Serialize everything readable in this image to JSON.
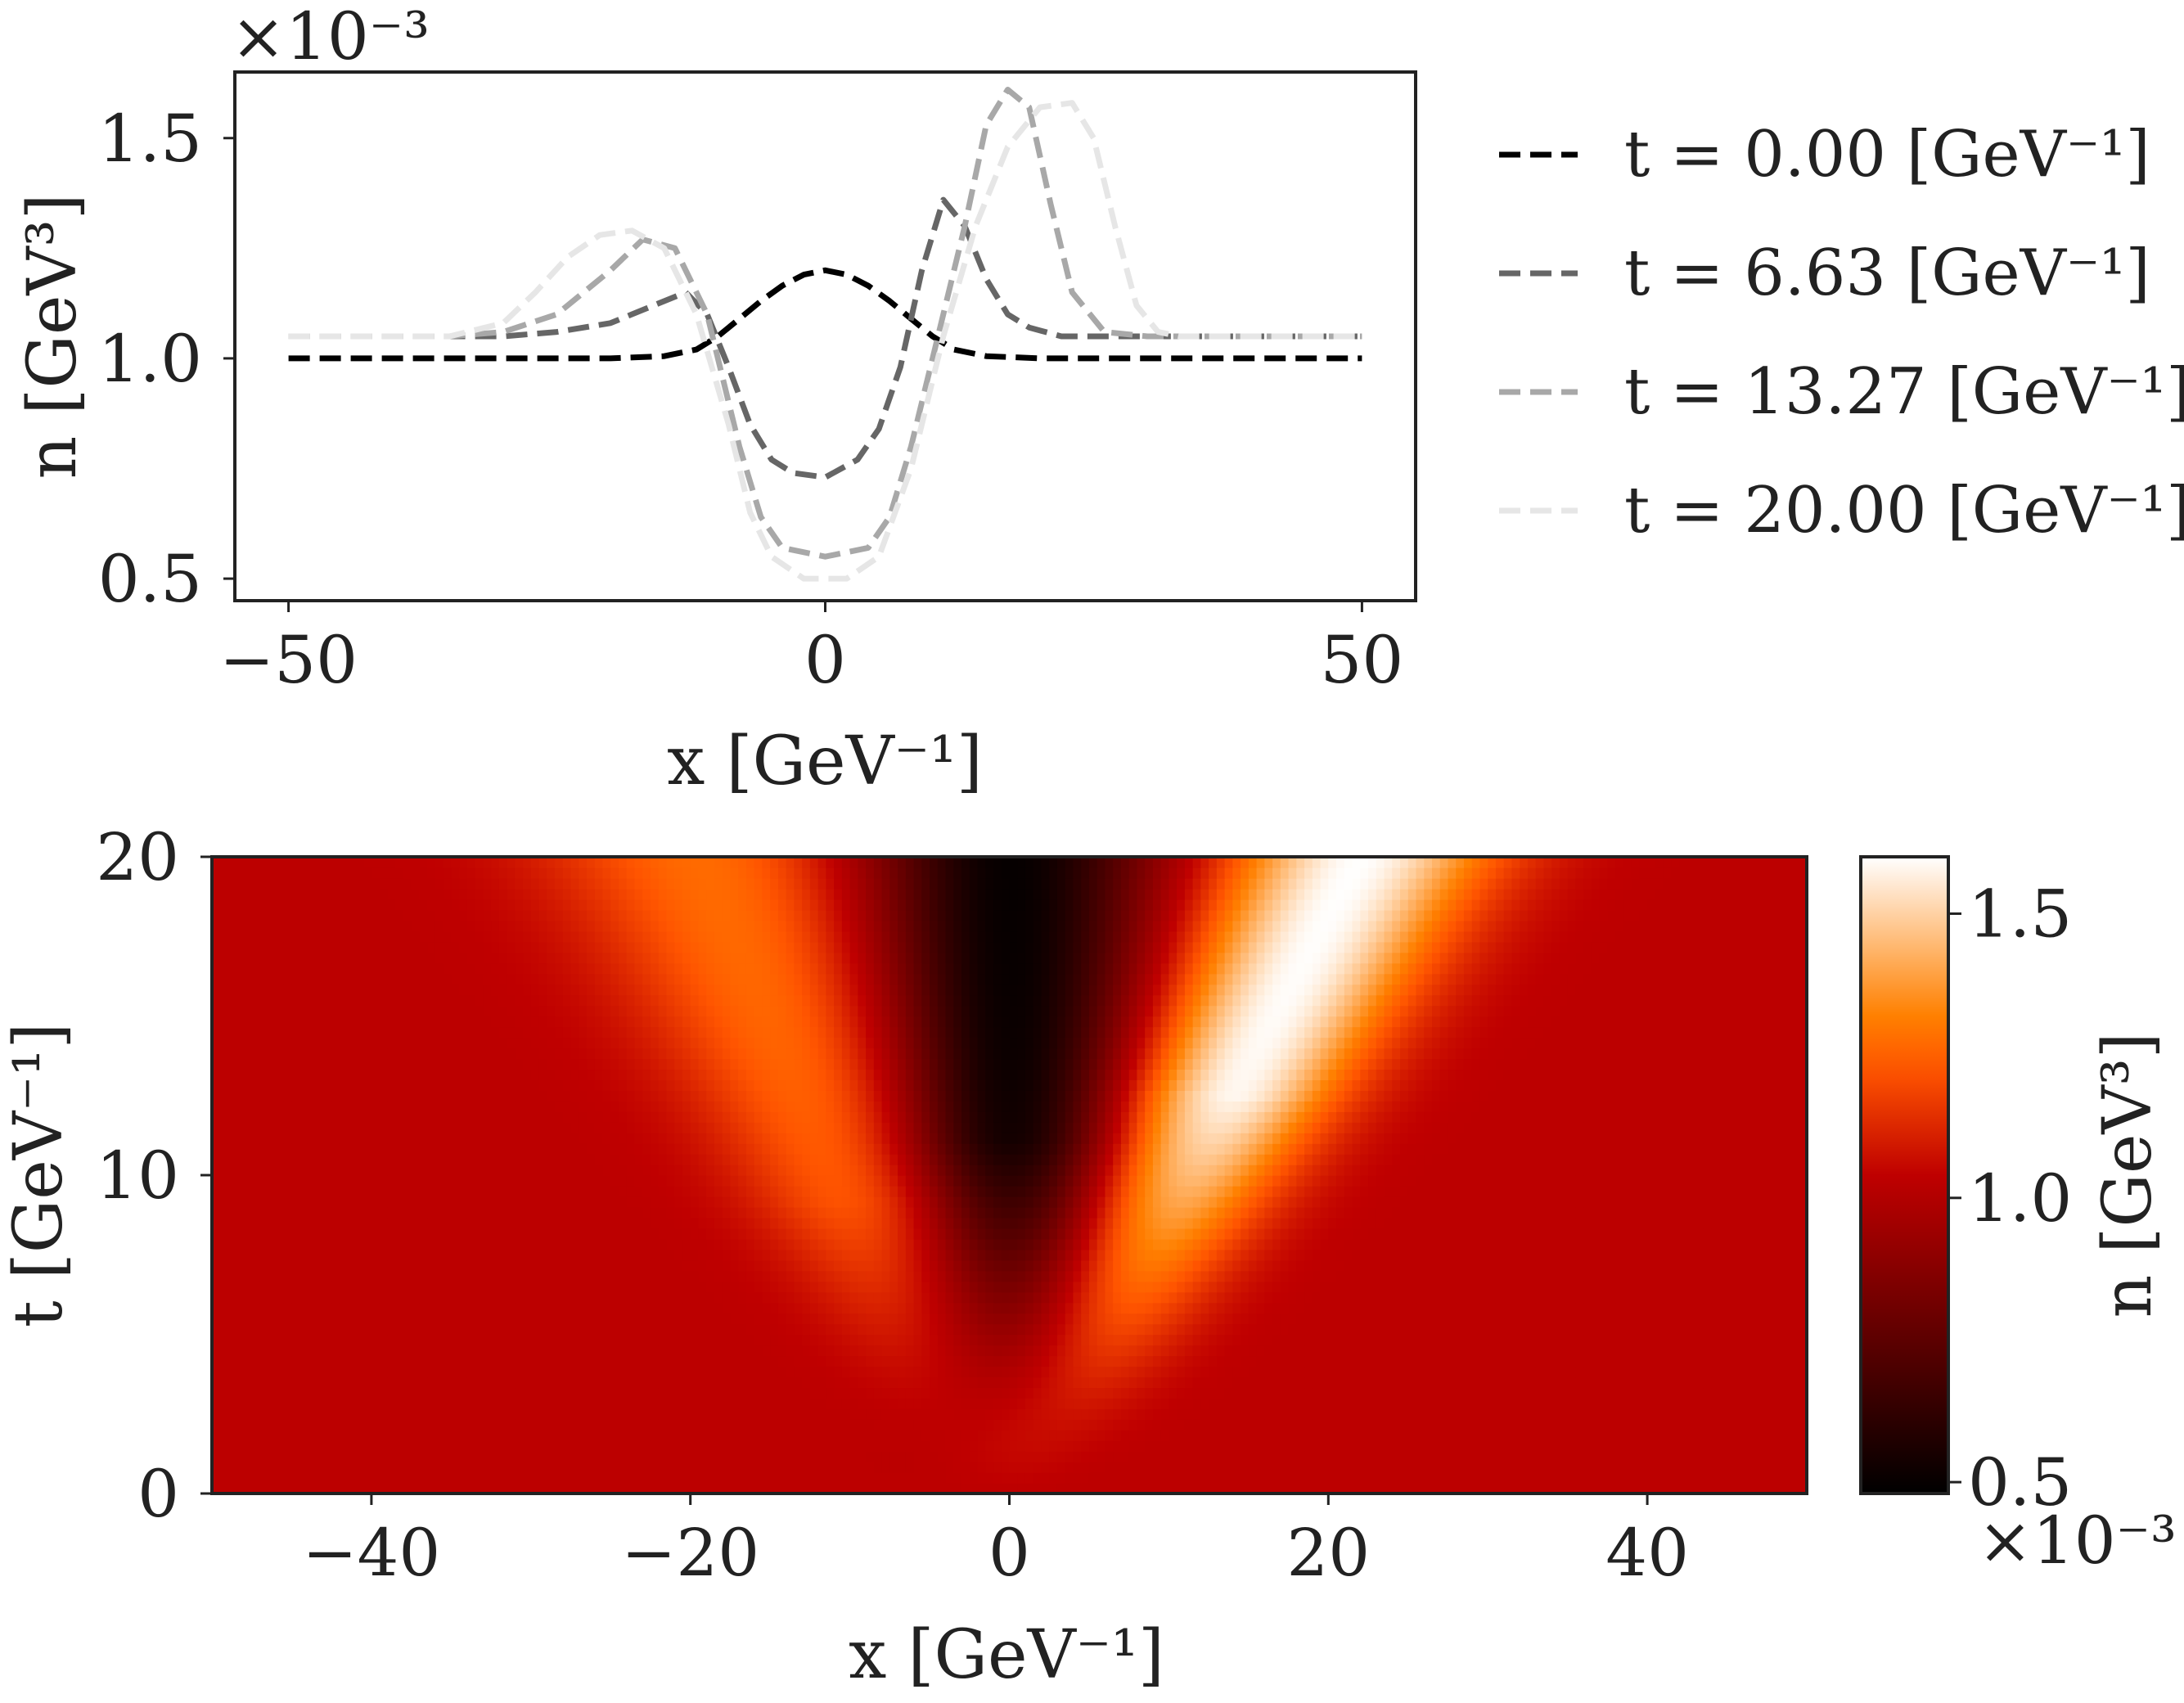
{
  "chart_data": [
    {
      "type": "line",
      "xlabel": "x [GeV⁻¹]",
      "ylabel": "n [GeV³]",
      "yscale_label": "×10⁻³",
      "xlim": [
        -55,
        55
      ],
      "ylim": [
        0.45,
        1.65
      ],
      "xticks": [
        -50,
        0,
        50
      ],
      "xtick_labels": [
        "−50",
        "0",
        "50"
      ],
      "yticks": [
        0.5,
        1.0,
        1.5
      ],
      "ytick_labels": [
        "0.5",
        "1.0",
        "1.5"
      ],
      "grid": false,
      "legend_position": "right",
      "series": [
        {
          "name": "t = 0.00 [GeV⁻¹]",
          "color": "#000000",
          "x": [
            -50,
            -30,
            -20,
            -15,
            -12,
            -10,
            -8,
            -6,
            -4,
            -2,
            0,
            2,
            4,
            6,
            8,
            10,
            12,
            15,
            20,
            30,
            50
          ],
          "y": [
            1.0,
            1.0,
            1.0,
            1.005,
            1.02,
            1.05,
            1.09,
            1.13,
            1.165,
            1.19,
            1.2,
            1.19,
            1.165,
            1.13,
            1.09,
            1.05,
            1.02,
            1.005,
            1.0,
            1.0,
            1.0
          ]
        },
        {
          "name": "t = 6.63 [GeV⁻¹]",
          "color": "#666666",
          "x": [
            -50,
            -30,
            -25,
            -20,
            -16,
            -13,
            -11,
            -9,
            -7,
            -5,
            -3,
            0,
            3,
            5,
            7,
            9,
            11,
            13,
            15,
            17,
            19,
            22,
            25,
            30,
            50
          ],
          "y": [
            1.05,
            1.05,
            1.06,
            1.08,
            1.12,
            1.15,
            1.1,
            0.98,
            0.85,
            0.77,
            0.74,
            0.73,
            0.77,
            0.84,
            0.98,
            1.2,
            1.36,
            1.3,
            1.18,
            1.1,
            1.07,
            1.05,
            1.05,
            1.05,
            1.05
          ]
        },
        {
          "name": "t = 13.27 [GeV⁻¹]",
          "color": "#a8a8a8",
          "x": [
            -50,
            -35,
            -30,
            -25,
            -20,
            -17,
            -14,
            -11,
            -8,
            -6,
            -4,
            0,
            4,
            6,
            8,
            10,
            13,
            15,
            17,
            19,
            21,
            23,
            26,
            30,
            50
          ],
          "y": [
            1.05,
            1.05,
            1.06,
            1.1,
            1.2,
            1.27,
            1.25,
            1.1,
            0.8,
            0.64,
            0.57,
            0.55,
            0.57,
            0.64,
            0.8,
            1.0,
            1.3,
            1.53,
            1.61,
            1.57,
            1.35,
            1.15,
            1.06,
            1.05,
            1.05
          ]
        },
        {
          "name": "t = 20.00 [GeV⁻¹]",
          "color": "#e6e6e6",
          "x": [
            -50,
            -35,
            -30,
            -27,
            -24,
            -21,
            -18,
            -15,
            -12,
            -9,
            -7,
            -5,
            -2,
            2,
            5,
            8,
            11,
            14,
            17,
            20,
            23,
            25,
            27,
            29,
            31,
            33,
            36,
            50
          ],
          "y": [
            1.05,
            1.05,
            1.08,
            1.15,
            1.23,
            1.28,
            1.29,
            1.25,
            1.1,
            0.85,
            0.65,
            0.55,
            0.5,
            0.5,
            0.55,
            0.75,
            1.05,
            1.3,
            1.48,
            1.57,
            1.58,
            1.5,
            1.3,
            1.12,
            1.06,
            1.05,
            1.05,
            1.05
          ]
        }
      ]
    },
    {
      "type": "heatmap",
      "xlabel": "x [GeV⁻¹]",
      "ylabel": "t [GeV⁻¹]",
      "xlim": [
        -50,
        50
      ],
      "ylim": [
        0,
        20
      ],
      "xticks": [
        -40,
        -20,
        0,
        20,
        40
      ],
      "xtick_labels": [
        "−40",
        "−20",
        "0",
        "20",
        "40"
      ],
      "yticks": [
        0,
        10,
        20
      ],
      "ytick_labels": [
        "0",
        "10",
        "20"
      ],
      "colormap": "gist_heat",
      "colorbar": {
        "label": "n [GeV³]",
        "scale_label": "×10⁻³",
        "range": [
          0.48,
          1.6
        ],
        "ticks": [
          0.5,
          1.0,
          1.5
        ],
        "tick_labels": [
          "0.5",
          "1.0",
          "1.5"
        ]
      },
      "background_value": 1.03,
      "features": [
        {
          "kind": "left-moving bump",
          "x_at_t0": 0,
          "x_at_t20": -19,
          "peak_value": 1.28
        },
        {
          "kind": "central depletion",
          "x_at_t0": 0,
          "x_at_t20": 0,
          "min_value": 0.49
        },
        {
          "kind": "right-moving peak",
          "x_at_t0": 0,
          "x_at_t20": 22,
          "peak_value": 1.6
        }
      ]
    }
  ],
  "text": {
    "top_yscale": "×10⁻³",
    "top_ylabel": "n [GeV³]",
    "top_xlabel": "x [GeV⁻¹]",
    "bottom_ylabel": "t [GeV⁻¹]",
    "bottom_xlabel": "x [GeV⁻¹]",
    "cbar_label": "n [GeV³]",
    "cbar_scale": "×10⁻³"
  }
}
